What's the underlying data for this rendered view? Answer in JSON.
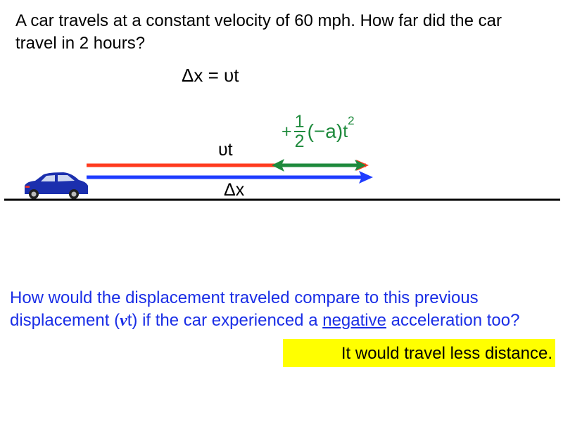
{
  "question": "A car travels at a constant velocity of 60 mph. How far did the car travel in 2 hours?",
  "equation": "Δx = υt",
  "diagram": {
    "vt_label": "υt",
    "dx_label": "Δx",
    "accel_term": {
      "sign": "+",
      "numerator": "1",
      "denominator": "2",
      "paren_term": "(−a)",
      "t": "t",
      "exponent": "2"
    },
    "colors": {
      "vt_arrow": "#ff3b1f",
      "dx_arrow": "#1f3cff",
      "accel_arrow": "#1e8a3c",
      "car": "#1b2fae"
    }
  },
  "followup": {
    "before": "How would the displacement traveled compare to this previous displacement (",
    "italic": "v",
    "after_italic": "t) if the car experienced a ",
    "underlined": "negative",
    "end": " acceleration too?"
  },
  "answer": "It would travel less distance."
}
